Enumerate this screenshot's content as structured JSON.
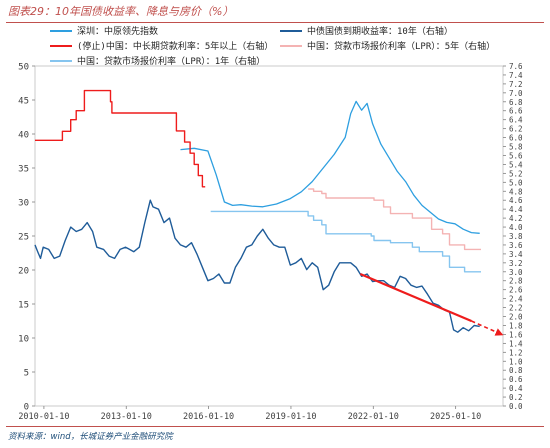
{
  "header": {
    "title": "图表29：10年国债收益率、降息与房价（%）"
  },
  "footer": {
    "source": "资料来源：wind，长城证券产业金融研究院"
  },
  "chart_data": {
    "type": "line",
    "x_ticks": [
      "2010-01-10",
      "2013-01-10",
      "2016-01-10",
      "2019-01-10",
      "2022-01-10",
      "2025-01-10"
    ],
    "left_axis": {
      "range": [
        0,
        50
      ],
      "ticks": [
        "0",
        "5",
        "10",
        "15",
        "20",
        "25",
        "30",
        "35",
        "40",
        "45",
        "50"
      ]
    },
    "right_axis": {
      "range": [
        0,
        7.6
      ],
      "ticks": [
        "0.0",
        "0.2",
        "0.4",
        "0.6",
        "0.8",
        "1.0",
        "1.2",
        "1.4",
        "1.6",
        "1.8",
        "2.0",
        "2.2",
        "2.4",
        "2.6",
        "2.8",
        "3.0",
        "3.2",
        "3.4",
        "3.6",
        "3.8",
        "4.0",
        "4.2",
        "4.4",
        "4.6",
        "4.8",
        "5.0",
        "5.2",
        "5.4",
        "5.6",
        "5.8",
        "6.0",
        "6.2",
        "6.4",
        "6.6",
        "6.8",
        "7.0",
        "7.2",
        "7.4",
        "7.6"
      ]
    },
    "legend_placement": "top",
    "series": [
      {
        "name": "深圳：中原领先指数",
        "axis": "left",
        "color": "#2e9fe0",
        "points": [
          [
            2015.0,
            37.7
          ],
          [
            2015.5,
            37.9
          ],
          [
            2016.0,
            37.5
          ],
          [
            2016.3,
            34.0
          ],
          [
            2016.6,
            30.0
          ],
          [
            2016.9,
            29.5
          ],
          [
            2017.2,
            29.6
          ],
          [
            2017.6,
            29.4
          ],
          [
            2018.0,
            29.3
          ],
          [
            2018.5,
            29.7
          ],
          [
            2019.0,
            30.5
          ],
          [
            2019.4,
            31.5
          ],
          [
            2019.8,
            33.0
          ],
          [
            2020.2,
            35.0
          ],
          [
            2020.6,
            37.0
          ],
          [
            2021.0,
            39.5
          ],
          [
            2021.2,
            43.0
          ],
          [
            2021.4,
            44.8
          ],
          [
            2021.6,
            43.5
          ],
          [
            2021.8,
            44.5
          ],
          [
            2022.0,
            41.5
          ],
          [
            2022.3,
            38.5
          ],
          [
            2022.6,
            36.5
          ],
          [
            2022.9,
            34.5
          ],
          [
            2023.2,
            33.0
          ],
          [
            2023.5,
            31.0
          ],
          [
            2023.8,
            29.5
          ],
          [
            2024.1,
            28.5
          ],
          [
            2024.4,
            27.5
          ],
          [
            2024.7,
            27.0
          ],
          [
            2025.0,
            26.8
          ],
          [
            2025.3,
            26.0
          ],
          [
            2025.6,
            25.5
          ],
          [
            2025.9,
            25.4
          ]
        ]
      },
      {
        "name": "(停止)中国：中长期贷款利率：5年以上（右轴）",
        "axis": "right",
        "color": "#ee1c1c",
        "step": true,
        "points": [
          [
            2009.7,
            5.94
          ],
          [
            2010.7,
            5.94
          ],
          [
            2010.7,
            6.14
          ],
          [
            2011.0,
            6.14
          ],
          [
            2011.0,
            6.4
          ],
          [
            2011.2,
            6.4
          ],
          [
            2011.2,
            6.6
          ],
          [
            2011.5,
            6.6
          ],
          [
            2011.5,
            7.05
          ],
          [
            2012.45,
            7.05
          ],
          [
            2012.45,
            6.8
          ],
          [
            2012.5,
            6.8
          ],
          [
            2012.5,
            6.55
          ],
          [
            2014.85,
            6.55
          ],
          [
            2014.85,
            6.15
          ],
          [
            2015.15,
            6.15
          ],
          [
            2015.15,
            5.9
          ],
          [
            2015.35,
            5.9
          ],
          [
            2015.35,
            5.65
          ],
          [
            2015.5,
            5.65
          ],
          [
            2015.5,
            5.4
          ],
          [
            2015.65,
            5.4
          ],
          [
            2015.65,
            5.15
          ],
          [
            2015.8,
            5.15
          ],
          [
            2015.8,
            4.9
          ],
          [
            2015.9,
            4.9
          ]
        ]
      },
      {
        "name": "中国：贷款市场报价利率（LPR）：5年（右轴）",
        "axis": "right",
        "color": "#f4b3b3",
        "step": true,
        "points": [
          [
            2019.65,
            4.85
          ],
          [
            2019.85,
            4.85
          ],
          [
            2019.85,
            4.8
          ],
          [
            2020.15,
            4.8
          ],
          [
            2020.15,
            4.75
          ],
          [
            2020.3,
            4.75
          ],
          [
            2020.3,
            4.65
          ],
          [
            2022.05,
            4.65
          ],
          [
            2022.05,
            4.6
          ],
          [
            2022.4,
            4.6
          ],
          [
            2022.4,
            4.45
          ],
          [
            2022.65,
            4.45
          ],
          [
            2022.65,
            4.3
          ],
          [
            2023.45,
            4.3
          ],
          [
            2023.45,
            4.2
          ],
          [
            2024.15,
            4.2
          ],
          [
            2024.15,
            3.95
          ],
          [
            2024.55,
            3.95
          ],
          [
            2024.55,
            3.85
          ],
          [
            2024.8,
            3.85
          ],
          [
            2024.8,
            3.6
          ],
          [
            2025.35,
            3.6
          ],
          [
            2025.35,
            3.5
          ],
          [
            2025.95,
            3.5
          ]
        ]
      },
      {
        "name": "中国：贷款市场报价利率（LPR）：1年（右轴）",
        "axis": "right",
        "color": "#86c5ef",
        "step": true,
        "points": [
          [
            2016.1,
            4.35
          ],
          [
            2019.65,
            4.35
          ],
          [
            2019.65,
            4.25
          ],
          [
            2019.85,
            4.25
          ],
          [
            2019.85,
            4.15
          ],
          [
            2020.15,
            4.15
          ],
          [
            2020.15,
            4.05
          ],
          [
            2020.3,
            4.05
          ],
          [
            2020.3,
            3.85
          ],
          [
            2021.95,
            3.85
          ],
          [
            2021.95,
            3.8
          ],
          [
            2022.05,
            3.8
          ],
          [
            2022.05,
            3.7
          ],
          [
            2022.65,
            3.7
          ],
          [
            2022.65,
            3.65
          ],
          [
            2023.45,
            3.65
          ],
          [
            2023.45,
            3.55
          ],
          [
            2023.7,
            3.55
          ],
          [
            2023.7,
            3.45
          ],
          [
            2024.55,
            3.45
          ],
          [
            2024.55,
            3.35
          ],
          [
            2024.8,
            3.35
          ],
          [
            2024.8,
            3.1
          ],
          [
            2025.35,
            3.1
          ],
          [
            2025.35,
            3.0
          ],
          [
            2025.95,
            3.0
          ]
        ]
      },
      {
        "name": "中债国债到期收益率：10年（右轴）",
        "axis": "right",
        "color": "#1f5c99",
        "points": [
          [
            2009.7,
            3.6
          ],
          [
            2009.8,
            3.45
          ],
          [
            2009.9,
            3.3
          ],
          [
            2010.0,
            3.55
          ],
          [
            2010.2,
            3.5
          ],
          [
            2010.4,
            3.3
          ],
          [
            2010.6,
            3.35
          ],
          [
            2010.8,
            3.7
          ],
          [
            2011.0,
            4.0
          ],
          [
            2011.2,
            3.9
          ],
          [
            2011.4,
            3.95
          ],
          [
            2011.6,
            4.1
          ],
          [
            2011.8,
            3.9
          ],
          [
            2011.95,
            3.55
          ],
          [
            2012.2,
            3.5
          ],
          [
            2012.4,
            3.35
          ],
          [
            2012.6,
            3.3
          ],
          [
            2012.8,
            3.5
          ],
          [
            2013.0,
            3.55
          ],
          [
            2013.3,
            3.45
          ],
          [
            2013.5,
            3.55
          ],
          [
            2013.7,
            4.1
          ],
          [
            2013.9,
            4.6
          ],
          [
            2014.0,
            4.45
          ],
          [
            2014.2,
            4.4
          ],
          [
            2014.4,
            4.1
          ],
          [
            2014.6,
            4.2
          ],
          [
            2014.8,
            3.75
          ],
          [
            2015.0,
            3.6
          ],
          [
            2015.2,
            3.55
          ],
          [
            2015.4,
            3.65
          ],
          [
            2015.6,
            3.4
          ],
          [
            2015.8,
            3.1
          ],
          [
            2016.0,
            2.8
          ],
          [
            2016.2,
            2.85
          ],
          [
            2016.4,
            2.95
          ],
          [
            2016.6,
            2.75
          ],
          [
            2016.8,
            2.75
          ],
          [
            2017.0,
            3.1
          ],
          [
            2017.2,
            3.3
          ],
          [
            2017.4,
            3.55
          ],
          [
            2017.6,
            3.6
          ],
          [
            2017.8,
            3.8
          ],
          [
            2018.0,
            3.95
          ],
          [
            2018.2,
            3.75
          ],
          [
            2018.4,
            3.6
          ],
          [
            2018.6,
            3.55
          ],
          [
            2018.8,
            3.55
          ],
          [
            2019.0,
            3.15
          ],
          [
            2019.2,
            3.2
          ],
          [
            2019.4,
            3.3
          ],
          [
            2019.6,
            3.05
          ],
          [
            2019.8,
            3.2
          ],
          [
            2020.0,
            3.1
          ],
          [
            2020.2,
            2.6
          ],
          [
            2020.4,
            2.7
          ],
          [
            2020.6,
            3.0
          ],
          [
            2020.8,
            3.2
          ],
          [
            2021.0,
            3.2
          ],
          [
            2021.2,
            3.2
          ],
          [
            2021.4,
            3.1
          ],
          [
            2021.6,
            2.9
          ],
          [
            2021.8,
            2.95
          ],
          [
            2022.0,
            2.78
          ],
          [
            2022.2,
            2.8
          ],
          [
            2022.4,
            2.8
          ],
          [
            2022.6,
            2.7
          ],
          [
            2022.8,
            2.65
          ],
          [
            2023.0,
            2.9
          ],
          [
            2023.2,
            2.85
          ],
          [
            2023.4,
            2.7
          ],
          [
            2023.6,
            2.65
          ],
          [
            2023.8,
            2.68
          ],
          [
            2024.0,
            2.5
          ],
          [
            2024.2,
            2.3
          ],
          [
            2024.4,
            2.25
          ],
          [
            2024.6,
            2.15
          ],
          [
            2024.8,
            2.1
          ],
          [
            2024.95,
            1.7
          ],
          [
            2025.1,
            1.65
          ],
          [
            2025.3,
            1.75
          ],
          [
            2025.5,
            1.68
          ],
          [
            2025.7,
            1.8
          ],
          [
            2025.9,
            1.78
          ]
        ]
      },
      {
        "axis": "right",
        "color": "#ee1c1c",
        "annotation": "trend arrow",
        "solid": [
          [
            2021.55,
            2.95
          ],
          [
            2025.6,
            1.9
          ]
        ],
        "dashed": [
          [
            2025.6,
            1.9
          ],
          [
            2026.7,
            1.6
          ]
        ]
      }
    ]
  }
}
